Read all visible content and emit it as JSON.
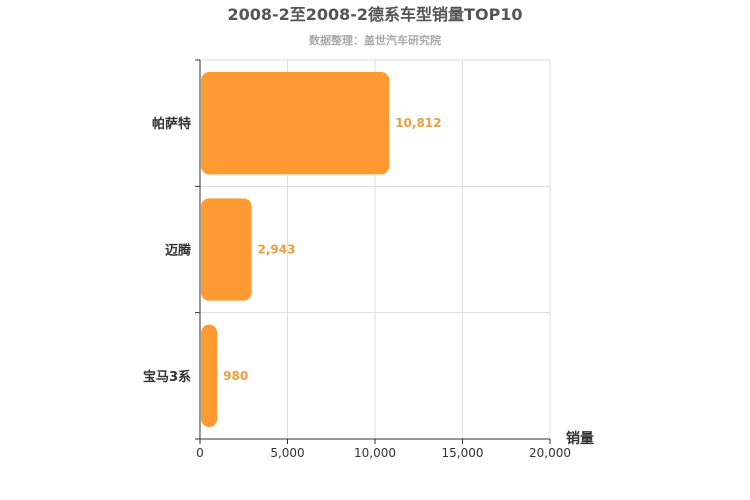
{
  "chart_data": {
    "type": "bar",
    "orientation": "horizontal",
    "title": "2008-2至2008-2德系车型销量TOP10",
    "subtitle": "数据整理：盖世汽车研究院",
    "xlabel": "销量",
    "ylabel": "",
    "categories": [
      "帕萨特",
      "迈腾",
      "宝马3系"
    ],
    "values": [
      10812,
      2943,
      980
    ],
    "value_labels": [
      "10,812",
      "2,943",
      "980"
    ],
    "xlim": [
      0,
      20000
    ],
    "x_ticks": [
      0,
      5000,
      10000,
      15000,
      20000
    ],
    "x_tick_labels": [
      "0",
      "5,000",
      "10,000",
      "15,000",
      "20,000"
    ],
    "grid": true,
    "legend": "none",
    "colors": {
      "bar": "#ff9a33",
      "value_label": "#e8a040",
      "title": "#555555",
      "subtitle": "#aaaaaa",
      "axis": "#333333",
      "grid": "#dddddd"
    }
  }
}
